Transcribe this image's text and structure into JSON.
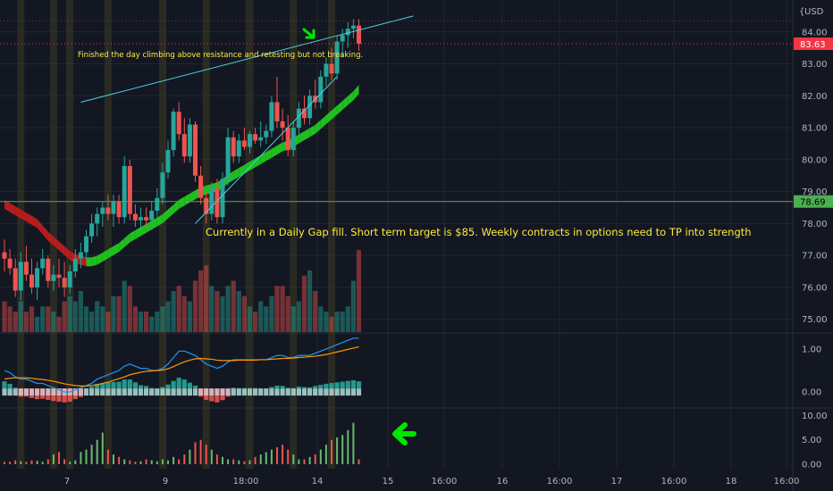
{
  "currency_label": "USD",
  "price_axis": {
    "ticks": [
      "84.00",
      "83.00",
      "82.00",
      "81.00",
      "80.00",
      "79.00",
      "78.00",
      "77.00",
      "76.00",
      "75.00"
    ],
    "ylim": [
      74.6,
      85.0
    ],
    "current_price": {
      "value": 83.63,
      "label": "83.63",
      "color": "#f23645"
    },
    "level_line": {
      "value": 78.69,
      "label": "78.69",
      "color": "#4caf50"
    }
  },
  "time_axis": {
    "ticks": [
      "7",
      "9",
      "18:00",
      "14",
      "15",
      "16:00",
      "16",
      "16:00",
      "17",
      "16:00",
      "18",
      "16:00"
    ]
  },
  "annotations": {
    "top_note": "Finished the day climbing above resistance and retesting but not breaking.",
    "main_note": "Currently in a Daily Gap fill. Short term target is $85. Weekly contracts in options need to TP into strength"
  },
  "macd_axis": {
    "ticks": [
      "1.00",
      "0.00"
    ]
  },
  "osc_axis": {
    "ticks": [
      "10.00",
      "5.00",
      "0.00"
    ]
  },
  "colors": {
    "up": "#26a69a",
    "down": "#ef5350",
    "ribbon_up": "#1fbf1f",
    "ribbon_down": "#b71c1c",
    "wedge": "#4dd0e1",
    "annotation": "#ffeb3b",
    "arrow": "#00e600",
    "macd_line": "#2196f3",
    "signal_line": "#ff9800",
    "background": "#131722"
  },
  "chart_data": {
    "type": "candlestick",
    "candles": [
      [
        77.1,
        77.5,
        76.5,
        76.9
      ],
      [
        76.9,
        77.2,
        76.4,
        76.6
      ],
      [
        76.6,
        76.9,
        75.7,
        75.9
      ],
      [
        75.9,
        77.1,
        75.6,
        76.8
      ],
      [
        76.8,
        77.3,
        76.2,
        76.4
      ],
      [
        76.4,
        76.9,
        75.8,
        76.0
      ],
      [
        76.0,
        76.8,
        75.6,
        76.6
      ],
      [
        76.6,
        77.2,
        76.4,
        76.9
      ],
      [
        76.9,
        77.0,
        76.0,
        76.2
      ],
      [
        76.2,
        76.7,
        75.9,
        76.4
      ],
      [
        76.4,
        76.9,
        76.0,
        76.3
      ],
      [
        76.3,
        76.8,
        75.7,
        76.0
      ],
      [
        76.0,
        76.7,
        75.8,
        76.5
      ],
      [
        76.5,
        77.2,
        76.3,
        76.9
      ],
      [
        76.9,
        77.4,
        76.6,
        77.1
      ],
      [
        77.1,
        77.8,
        76.9,
        77.6
      ],
      [
        77.6,
        78.3,
        77.4,
        78.0
      ],
      [
        78.0,
        78.5,
        77.6,
        78.3
      ],
      [
        78.3,
        78.7,
        77.9,
        78.5
      ],
      [
        78.5,
        78.9,
        78.1,
        78.3
      ],
      [
        78.3,
        78.9,
        77.9,
        78.7
      ],
      [
        78.7,
        78.9,
        78.0,
        78.2
      ],
      [
        78.2,
        80.1,
        78.0,
        79.8
      ],
      [
        79.8,
        80.0,
        78.1,
        78.3
      ],
      [
        78.3,
        78.6,
        77.9,
        78.1
      ],
      [
        78.1,
        78.5,
        77.8,
        78.2
      ],
      [
        78.2,
        78.5,
        77.9,
        78.1
      ],
      [
        78.1,
        78.7,
        77.8,
        78.4
      ],
      [
        78.4,
        79.1,
        78.2,
        78.8
      ],
      [
        78.8,
        79.9,
        78.6,
        79.6
      ],
      [
        79.6,
        80.6,
        79.4,
        80.3
      ],
      [
        80.3,
        81.6,
        80.1,
        81.5
      ],
      [
        81.5,
        81.8,
        80.6,
        80.8
      ],
      [
        80.8,
        81.3,
        79.9,
        80.1
      ],
      [
        80.1,
        81.3,
        79.9,
        81.1
      ],
      [
        81.1,
        81.2,
        79.3,
        79.5
      ],
      [
        79.5,
        79.8,
        78.6,
        78.8
      ],
      [
        78.8,
        79.0,
        78.0,
        78.3
      ],
      [
        78.3,
        79.3,
        78.1,
        79.1
      ],
      [
        79.1,
        79.4,
        78.0,
        78.2
      ],
      [
        78.2,
        79.6,
        78.0,
        79.4
      ],
      [
        79.4,
        81.0,
        79.2,
        80.7
      ],
      [
        80.7,
        80.9,
        79.9,
        80.1
      ],
      [
        80.1,
        80.8,
        79.9,
        80.6
      ],
      [
        80.6,
        81.0,
        80.3,
        80.4
      ],
      [
        80.4,
        80.9,
        80.2,
        80.8
      ],
      [
        80.8,
        81.0,
        80.5,
        80.6
      ],
      [
        80.6,
        81.2,
        80.4,
        80.7
      ],
      [
        80.7,
        81.1,
        80.5,
        80.9
      ],
      [
        80.9,
        82.0,
        80.7,
        81.8
      ],
      [
        81.8,
        82.6,
        81.0,
        81.2
      ],
      [
        81.2,
        81.6,
        80.6,
        81.0
      ],
      [
        81.0,
        81.4,
        80.1,
        80.3
      ],
      [
        80.3,
        81.2,
        80.1,
        81.0
      ],
      [
        81.0,
        81.8,
        80.8,
        81.6
      ],
      [
        81.6,
        82.0,
        81.1,
        81.3
      ],
      [
        81.3,
        82.2,
        81.1,
        82.0
      ],
      [
        82.0,
        82.5,
        81.6,
        81.8
      ],
      [
        81.8,
        82.8,
        81.6,
        82.6
      ],
      [
        82.6,
        83.2,
        82.3,
        83.0
      ],
      [
        83.0,
        83.5,
        82.5,
        82.7
      ],
      [
        82.7,
        83.9,
        82.5,
        83.7
      ],
      [
        83.7,
        84.1,
        83.2,
        83.9
      ],
      [
        83.9,
        84.3,
        83.5,
        84.1
      ],
      [
        84.1,
        84.4,
        83.8,
        84.2
      ],
      [
        84.2,
        84.4,
        83.4,
        83.63
      ]
    ],
    "volume": [
      6,
      5,
      4,
      6,
      4,
      5,
      3,
      5,
      5,
      4,
      3,
      6,
      7,
      6,
      8,
      5,
      4,
      6,
      5,
      4,
      7,
      7,
      10,
      9,
      5,
      4,
      4,
      3,
      4,
      5,
      6,
      8,
      9,
      7,
      6,
      10,
      12,
      13,
      9,
      8,
      7,
      9,
      10,
      8,
      7,
      5,
      4,
      6,
      5,
      7,
      9,
      9,
      7,
      5,
      6,
      11,
      12,
      8,
      5,
      4,
      3,
      4,
      4,
      5,
      10,
      16
    ],
    "ribbon_ema": [
      78.6,
      78.5,
      78.4,
      78.3,
      78.2,
      78.1,
      78.0,
      77.8,
      77.6,
      77.45,
      77.3,
      77.15,
      77.0,
      76.9,
      76.85,
      76.8,
      76.8,
      76.85,
      76.95,
      77.05,
      77.15,
      77.25,
      77.4,
      77.55,
      77.65,
      77.75,
      77.85,
      77.95,
      78.05,
      78.15,
      78.3,
      78.45,
      78.6,
      78.7,
      78.8,
      78.9,
      79.0,
      79.05,
      79.1,
      79.15,
      79.25,
      79.4,
      79.5,
      79.6,
      79.7,
      79.8,
      79.9,
      80.0,
      80.1,
      80.2,
      80.3,
      80.4,
      80.45,
      80.55,
      80.65,
      80.75,
      80.85,
      80.95,
      81.1,
      81.25,
      81.4,
      81.55,
      81.7,
      81.85,
      82.0,
      82.2
    ],
    "macd": [
      0.5,
      0.45,
      0.35,
      0.3,
      0.3,
      0.25,
      0.2,
      0.2,
      0.15,
      0.1,
      0.05,
      0.0,
      0.0,
      0.05,
      0.1,
      0.15,
      0.2,
      0.3,
      0.35,
      0.4,
      0.45,
      0.5,
      0.6,
      0.65,
      0.6,
      0.55,
      0.55,
      0.5,
      0.5,
      0.55,
      0.65,
      0.8,
      0.95,
      0.95,
      0.9,
      0.85,
      0.75,
      0.65,
      0.6,
      0.55,
      0.6,
      0.7,
      0.75,
      0.75,
      0.75,
      0.75,
      0.75,
      0.75,
      0.75,
      0.8,
      0.85,
      0.85,
      0.8,
      0.8,
      0.85,
      0.85,
      0.85,
      0.9,
      0.95,
      1.0,
      1.05,
      1.1,
      1.15,
      1.2,
      1.25,
      1.25
    ],
    "signal": [
      0.3,
      0.32,
      0.33,
      0.33,
      0.33,
      0.32,
      0.3,
      0.29,
      0.27,
      0.25,
      0.22,
      0.19,
      0.17,
      0.15,
      0.14,
      0.14,
      0.15,
      0.17,
      0.2,
      0.23,
      0.27,
      0.31,
      0.35,
      0.4,
      0.43,
      0.46,
      0.48,
      0.49,
      0.5,
      0.51,
      0.54,
      0.59,
      0.65,
      0.7,
      0.74,
      0.77,
      0.78,
      0.77,
      0.76,
      0.74,
      0.73,
      0.73,
      0.73,
      0.74,
      0.74,
      0.74,
      0.74,
      0.75,
      0.75,
      0.76,
      0.77,
      0.78,
      0.78,
      0.79,
      0.8,
      0.81,
      0.82,
      0.83,
      0.85,
      0.87,
      0.9,
      0.93,
      0.96,
      0.99,
      1.02,
      1.05
    ],
    "oscillator": [
      0.5,
      0.5,
      0.8,
      0.6,
      0.5,
      0.8,
      0.7,
      0.5,
      1.0,
      2.0,
      2.5,
      1.0,
      0.5,
      0.8,
      2.5,
      3.0,
      4.0,
      5.0,
      6.5,
      3.0,
      2.0,
      1.5,
      1.0,
      0.8,
      0.5,
      0.6,
      1.0,
      0.8,
      0.6,
      1.0,
      0.8,
      1.5,
      1.0,
      2.0,
      3.0,
      4.5,
      5.0,
      4.0,
      3.0,
      2.0,
      1.5,
      1.0,
      1.0,
      0.8,
      0.6,
      0.8,
      1.5,
      2.0,
      2.5,
      3.0,
      3.5,
      4.0,
      3.0,
      2.0,
      1.0,
      1.0,
      1.5,
      2.0,
      3.0,
      4.0,
      5.0,
      5.5,
      6.0,
      7.0,
      8.5,
      1.0
    ],
    "wedge_upper": [
      [
        14,
        81.8
      ],
      [
        75,
        84.5
      ]
    ],
    "wedge_lower": [
      [
        35,
        78.0
      ],
      [
        61,
        82.6
      ]
    ],
    "gap_fill_level": 78.69,
    "highlighted_candles": [
      3,
      9,
      12,
      19,
      29,
      37,
      45,
      53,
      60
    ]
  }
}
